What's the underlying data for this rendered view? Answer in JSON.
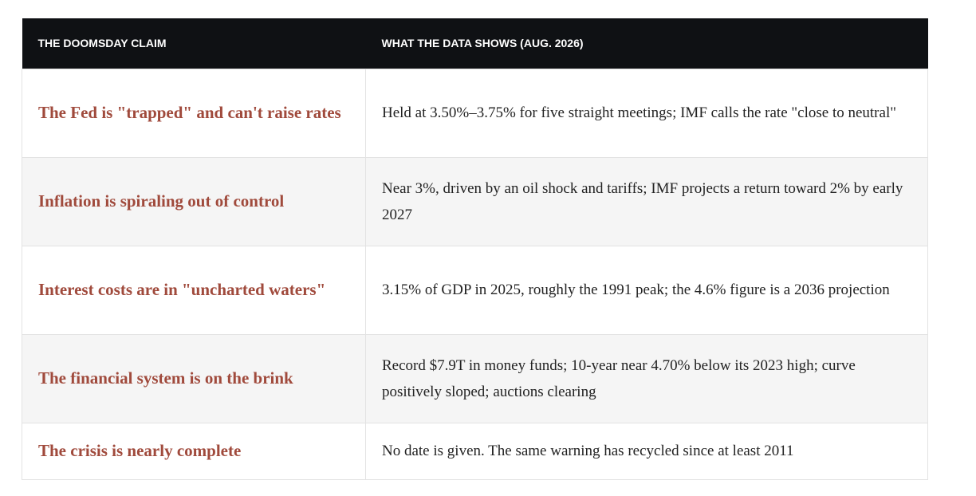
{
  "table": {
    "header": [
      "THE DOOMSDAY CLAIM",
      "WHAT THE DATA SHOWS (AUG. 2026)"
    ],
    "rows": [
      [
        "The Fed is \"trapped\" and can't raise rates",
        "Held at 3.50%–3.75% for five straight meetings; IMF calls the rate \"close to neutral\""
      ],
      [
        "Inflation is spiraling out of control",
        "Near 3%, driven by an oil shock and tariffs; IMF projects a return toward 2% by early 2027"
      ],
      [
        "Interest costs are in \"uncharted waters\"",
        "3.15% of GDP in 2025, roughly the 1991 peak; the 4.6% figure is a 2036 projection"
      ],
      [
        "The financial system is on the brink",
        "Record $7.9T in money funds; 10-year near 4.70% below its 2023 high; curve positively sloped; auctions clearing"
      ],
      [
        "The crisis is nearly complete",
        "No date is given. The same warning has recycled since at least 2011"
      ]
    ]
  }
}
